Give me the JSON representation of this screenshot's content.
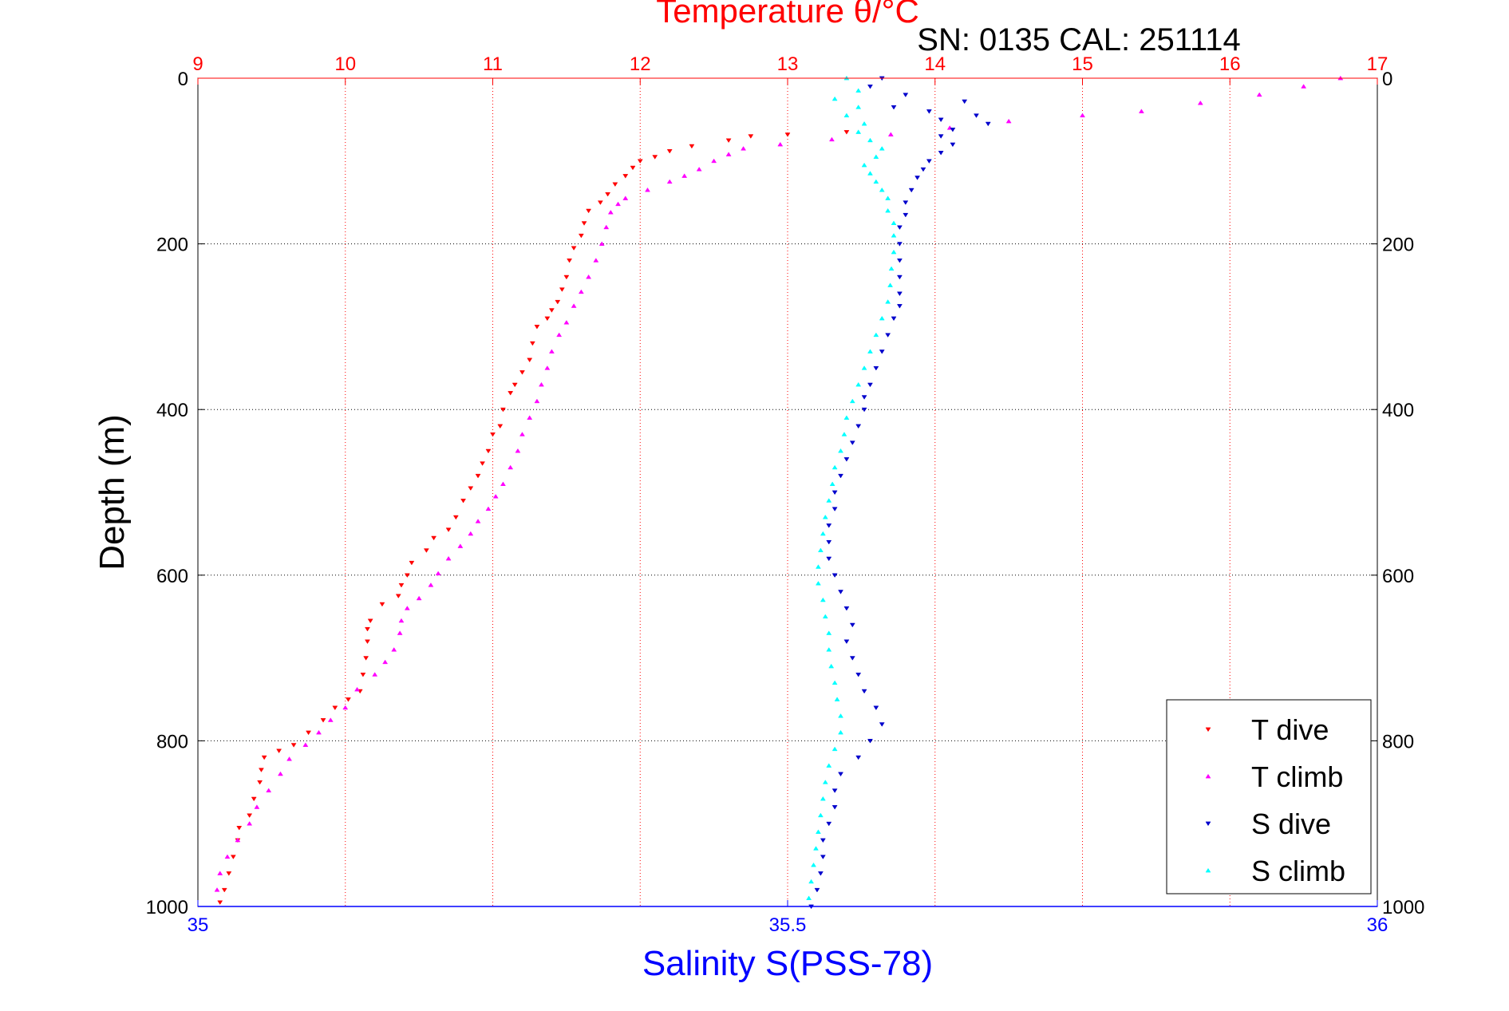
{
  "chart_data": {
    "type": "scatter",
    "title_top": "Temperature θ/°C",
    "subtitle": "SN: 0135  CAL: 251114",
    "ylabel": "Depth (m)",
    "xlabel_bottom": "Salinity S(PSS-78)",
    "y_axis": {
      "range": [
        0,
        1000
      ],
      "reversed": true,
      "ticks": [
        "0",
        "200",
        "400",
        "600",
        "800",
        "1000"
      ],
      "tick_values": [
        0,
        200,
        400,
        600,
        800,
        1000
      ]
    },
    "top_axis": {
      "range": [
        9,
        17
      ],
      "ticks": [
        "9",
        "10",
        "11",
        "12",
        "13",
        "14",
        "15",
        "16",
        "17"
      ],
      "tick_values": [
        9,
        10,
        11,
        12,
        13,
        14,
        15,
        16,
        17
      ],
      "color": "#ff0000",
      "grid": true
    },
    "bottom_axis": {
      "range": [
        35,
        36
      ],
      "ticks": [
        "35",
        "35.5",
        "36"
      ],
      "tick_values": [
        35,
        35.5,
        36
      ],
      "color": "#0000ff"
    },
    "grid": true,
    "legend_position": "bottom-right",
    "series": [
      {
        "name": "T dive",
        "axis": "top",
        "color": "#ff0000",
        "marker": "triangle-down",
        "points": [
          [
            13.4,
            65
          ],
          [
            13.0,
            68
          ],
          [
            12.75,
            70
          ],
          [
            12.6,
            75
          ],
          [
            12.35,
            82
          ],
          [
            12.2,
            88
          ],
          [
            12.1,
            95
          ],
          [
            12.0,
            100
          ],
          [
            11.95,
            108
          ],
          [
            11.9,
            118
          ],
          [
            11.83,
            128
          ],
          [
            11.78,
            140
          ],
          [
            11.73,
            150
          ],
          [
            11.65,
            160
          ],
          [
            11.62,
            175
          ],
          [
            11.6,
            190
          ],
          [
            11.55,
            205
          ],
          [
            11.52,
            220
          ],
          [
            11.5,
            240
          ],
          [
            11.47,
            255
          ],
          [
            11.44,
            270
          ],
          [
            11.4,
            280
          ],
          [
            11.37,
            290
          ],
          [
            11.3,
            300
          ],
          [
            11.27,
            320
          ],
          [
            11.25,
            340
          ],
          [
            11.2,
            355
          ],
          [
            11.15,
            370
          ],
          [
            11.12,
            380
          ],
          [
            11.07,
            400
          ],
          [
            11.05,
            420
          ],
          [
            11.0,
            430
          ],
          [
            10.97,
            450
          ],
          [
            10.93,
            465
          ],
          [
            10.9,
            480
          ],
          [
            10.85,
            495
          ],
          [
            10.8,
            510
          ],
          [
            10.75,
            530
          ],
          [
            10.7,
            545
          ],
          [
            10.6,
            555
          ],
          [
            10.55,
            570
          ],
          [
            10.45,
            585
          ],
          [
            10.42,
            600
          ],
          [
            10.38,
            612
          ],
          [
            10.36,
            625
          ],
          [
            10.25,
            635
          ],
          [
            10.17,
            655
          ],
          [
            10.15,
            665
          ],
          [
            10.15,
            680
          ],
          [
            10.14,
            700
          ],
          [
            10.12,
            720
          ],
          [
            10.1,
            740
          ],
          [
            10.02,
            750
          ],
          [
            9.93,
            760
          ],
          [
            9.85,
            775
          ],
          [
            9.75,
            790
          ],
          [
            9.65,
            805
          ],
          [
            9.55,
            812
          ],
          [
            9.45,
            820
          ],
          [
            9.43,
            835
          ],
          [
            9.42,
            850
          ],
          [
            9.38,
            870
          ],
          [
            9.35,
            890
          ],
          [
            9.28,
            905
          ],
          [
            9.27,
            920
          ],
          [
            9.24,
            940
          ],
          [
            9.21,
            960
          ],
          [
            9.18,
            980
          ],
          [
            9.15,
            995
          ]
        ]
      },
      {
        "name": "T climb",
        "axis": "top",
        "color": "#ff00ff",
        "marker": "triangle-up",
        "points": [
          [
            16.75,
            0
          ],
          [
            16.5,
            10
          ],
          [
            16.2,
            20
          ],
          [
            15.8,
            30
          ],
          [
            15.4,
            40
          ],
          [
            15.0,
            45
          ],
          [
            14.5,
            52
          ],
          [
            14.1,
            60
          ],
          [
            13.7,
            68
          ],
          [
            13.3,
            74
          ],
          [
            12.95,
            80
          ],
          [
            12.7,
            85
          ],
          [
            12.6,
            92
          ],
          [
            12.5,
            100
          ],
          [
            12.4,
            110
          ],
          [
            12.3,
            118
          ],
          [
            12.2,
            125
          ],
          [
            12.05,
            135
          ],
          [
            11.9,
            145
          ],
          [
            11.85,
            152
          ],
          [
            11.8,
            162
          ],
          [
            11.77,
            180
          ],
          [
            11.74,
            200
          ],
          [
            11.7,
            220
          ],
          [
            11.65,
            240
          ],
          [
            11.6,
            258
          ],
          [
            11.55,
            275
          ],
          [
            11.5,
            295
          ],
          [
            11.45,
            310
          ],
          [
            11.4,
            330
          ],
          [
            11.37,
            350
          ],
          [
            11.33,
            370
          ],
          [
            11.3,
            390
          ],
          [
            11.25,
            410
          ],
          [
            11.2,
            430
          ],
          [
            11.17,
            450
          ],
          [
            11.12,
            470
          ],
          [
            11.07,
            490
          ],
          [
            11.02,
            505
          ],
          [
            10.97,
            520
          ],
          [
            10.9,
            535
          ],
          [
            10.85,
            550
          ],
          [
            10.78,
            565
          ],
          [
            10.7,
            580
          ],
          [
            10.63,
            598
          ],
          [
            10.58,
            612
          ],
          [
            10.5,
            628
          ],
          [
            10.42,
            640
          ],
          [
            10.38,
            655
          ],
          [
            10.37,
            670
          ],
          [
            10.33,
            690
          ],
          [
            10.27,
            705
          ],
          [
            10.2,
            720
          ],
          [
            10.08,
            738
          ],
          [
            10.0,
            760
          ],
          [
            9.9,
            775
          ],
          [
            9.82,
            790
          ],
          [
            9.73,
            805
          ],
          [
            9.62,
            822
          ],
          [
            9.56,
            840
          ],
          [
            9.48,
            860
          ],
          [
            9.4,
            880
          ],
          [
            9.35,
            900
          ],
          [
            9.27,
            920
          ],
          [
            9.2,
            940
          ],
          [
            9.15,
            960
          ],
          [
            9.13,
            980
          ]
        ]
      },
      {
        "name": "S dive",
        "axis": "bottom",
        "color": "#0000cc",
        "marker": "triangle-down",
        "points": [
          [
            35.58,
            0
          ],
          [
            35.57,
            10
          ],
          [
            35.6,
            20
          ],
          [
            35.65,
            28
          ],
          [
            35.59,
            35
          ],
          [
            35.62,
            40
          ],
          [
            35.66,
            45
          ],
          [
            35.63,
            50
          ],
          [
            35.67,
            55
          ],
          [
            35.64,
            62
          ],
          [
            35.63,
            70
          ],
          [
            35.64,
            80
          ],
          [
            35.63,
            90
          ],
          [
            35.62,
            100
          ],
          [
            35.615,
            110
          ],
          [
            35.61,
            120
          ],
          [
            35.605,
            135
          ],
          [
            35.6,
            150
          ],
          [
            35.6,
            165
          ],
          [
            35.595,
            180
          ],
          [
            35.595,
            200
          ],
          [
            35.595,
            220
          ],
          [
            35.595,
            240
          ],
          [
            35.595,
            260
          ],
          [
            35.595,
            275
          ],
          [
            35.59,
            290
          ],
          [
            35.585,
            310
          ],
          [
            35.58,
            330
          ],
          [
            35.575,
            350
          ],
          [
            35.57,
            370
          ],
          [
            35.565,
            385
          ],
          [
            35.565,
            400
          ],
          [
            35.56,
            420
          ],
          [
            35.555,
            440
          ],
          [
            35.55,
            460
          ],
          [
            35.545,
            480
          ],
          [
            35.54,
            500
          ],
          [
            35.54,
            520
          ],
          [
            35.535,
            540
          ],
          [
            35.535,
            560
          ],
          [
            35.535,
            580
          ],
          [
            35.54,
            600
          ],
          [
            35.545,
            620
          ],
          [
            35.55,
            640
          ],
          [
            35.555,
            660
          ],
          [
            35.55,
            680
          ],
          [
            35.555,
            700
          ],
          [
            35.56,
            720
          ],
          [
            35.565,
            740
          ],
          [
            35.575,
            760
          ],
          [
            35.58,
            780
          ],
          [
            35.57,
            800
          ],
          [
            35.56,
            820
          ],
          [
            35.545,
            840
          ],
          [
            35.54,
            860
          ],
          [
            35.54,
            880
          ],
          [
            35.535,
            900
          ],
          [
            35.53,
            920
          ],
          [
            35.53,
            940
          ],
          [
            35.528,
            960
          ],
          [
            35.525,
            980
          ],
          [
            35.52,
            1000
          ]
        ]
      },
      {
        "name": "S climb",
        "axis": "bottom",
        "color": "#00ffff",
        "marker": "triangle-up",
        "points": [
          [
            35.55,
            0
          ],
          [
            35.56,
            15
          ],
          [
            35.54,
            25
          ],
          [
            35.56,
            35
          ],
          [
            35.55,
            45
          ],
          [
            35.565,
            55
          ],
          [
            35.56,
            65
          ],
          [
            35.57,
            75
          ],
          [
            35.58,
            85
          ],
          [
            35.575,
            95
          ],
          [
            35.565,
            105
          ],
          [
            35.57,
            115
          ],
          [
            35.575,
            125
          ],
          [
            35.58,
            135
          ],
          [
            35.585,
            145
          ],
          [
            35.585,
            160
          ],
          [
            35.59,
            175
          ],
          [
            35.59,
            190
          ],
          [
            35.59,
            210
          ],
          [
            35.588,
            230
          ],
          [
            35.587,
            250
          ],
          [
            35.585,
            270
          ],
          [
            35.58,
            290
          ],
          [
            35.575,
            310
          ],
          [
            35.57,
            330
          ],
          [
            35.565,
            350
          ],
          [
            35.56,
            370
          ],
          [
            35.555,
            390
          ],
          [
            35.55,
            410
          ],
          [
            35.548,
            430
          ],
          [
            35.545,
            450
          ],
          [
            35.54,
            470
          ],
          [
            35.538,
            490
          ],
          [
            35.535,
            510
          ],
          [
            35.532,
            530
          ],
          [
            35.53,
            550
          ],
          [
            35.528,
            570
          ],
          [
            35.526,
            590
          ],
          [
            35.526,
            610
          ],
          [
            35.53,
            630
          ],
          [
            35.532,
            650
          ],
          [
            35.535,
            670
          ],
          [
            35.535,
            690
          ],
          [
            35.537,
            710
          ],
          [
            35.54,
            730
          ],
          [
            35.542,
            750
          ],
          [
            35.545,
            770
          ],
          [
            35.545,
            790
          ],
          [
            35.54,
            810
          ],
          [
            35.535,
            830
          ],
          [
            35.532,
            850
          ],
          [
            35.53,
            870
          ],
          [
            35.528,
            890
          ],
          [
            35.526,
            910
          ],
          [
            35.524,
            930
          ],
          [
            35.522,
            950
          ],
          [
            35.52,
            970
          ],
          [
            35.518,
            990
          ]
        ]
      }
    ]
  }
}
